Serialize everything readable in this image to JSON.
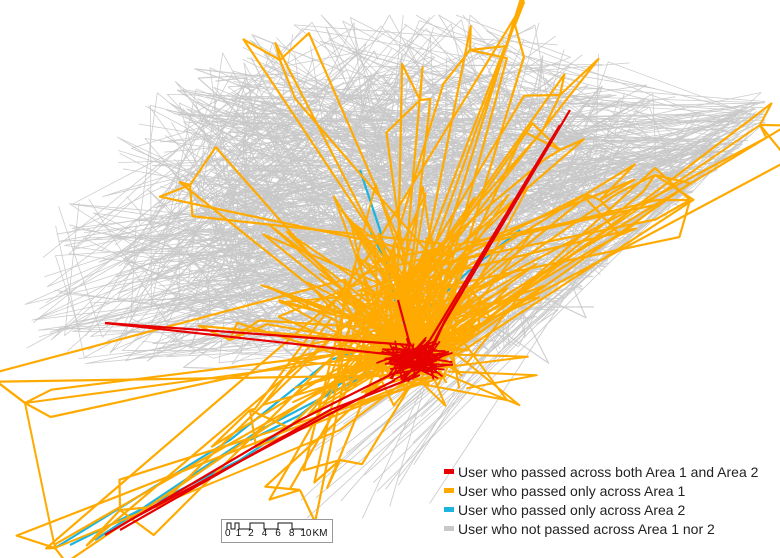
{
  "colors": {
    "both_areas": "#e60000",
    "area1_only": "#ffaa00",
    "area2_only": "#1cb5e0",
    "neither": "#c8c8c8"
  },
  "legend": {
    "items": [
      {
        "label": "User who passed across both Area 1 and Area 2",
        "color": "#e60000"
      },
      {
        "label": "User who passed only across Area 1",
        "color": "#ffaa00"
      },
      {
        "label": "User who passed only across Area 2",
        "color": "#1cb5e0"
      },
      {
        "label": "User who not passed across Area 1 nor 2",
        "color": "#c8c8c8"
      }
    ]
  },
  "scale_bar": {
    "ticks": [
      "0",
      "1",
      "2",
      "4",
      "6",
      "8",
      "10"
    ],
    "unit": "KM"
  }
}
